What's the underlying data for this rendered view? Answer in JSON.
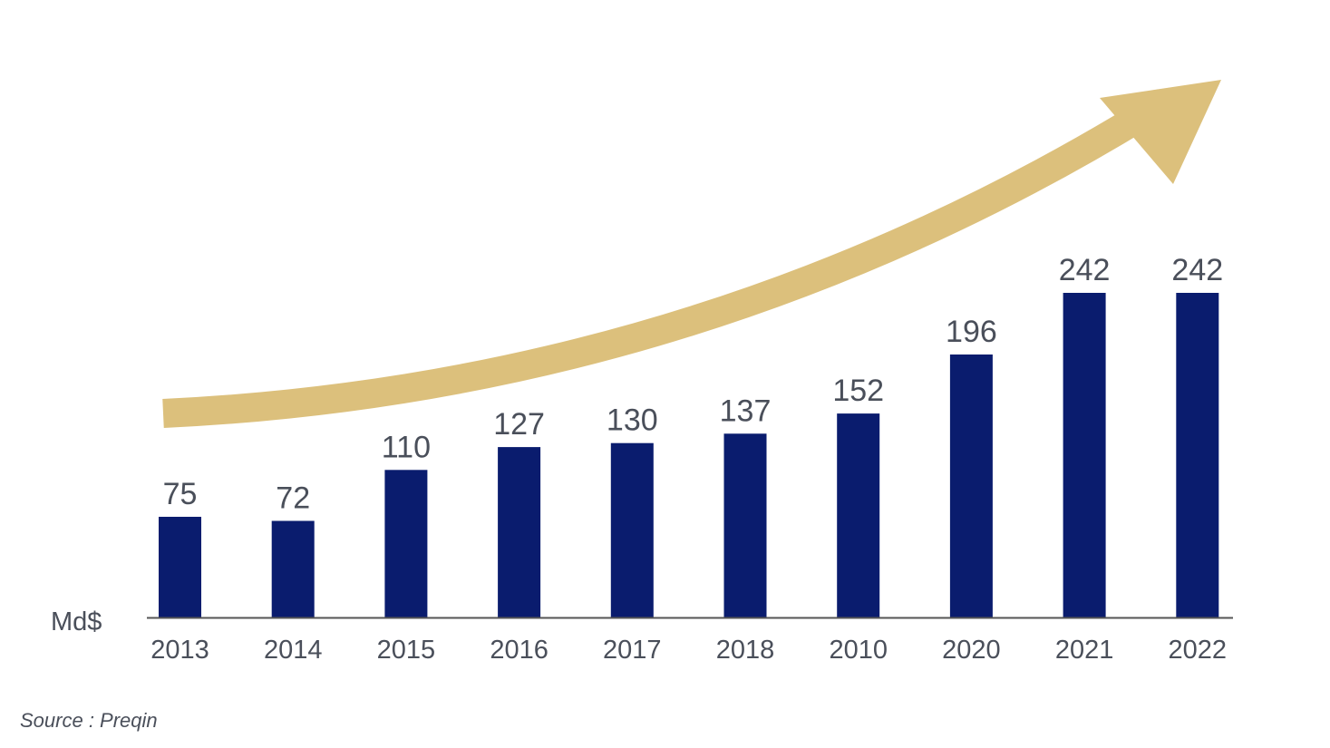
{
  "chart_data": {
    "type": "bar",
    "categories": [
      "2013",
      "2014",
      "2015",
      "2016",
      "2017",
      "2018",
      "2010",
      "2020",
      "2021",
      "2022"
    ],
    "values": [
      75,
      72,
      110,
      127,
      130,
      137,
      152,
      196,
      242,
      242
    ],
    "ylabel": "Md$",
    "ylim": [
      0,
      300
    ],
    "grid": false,
    "legend": "none",
    "data_labels": true,
    "annotations": [
      {
        "type": "trend-arrow",
        "description": "rising curved arrow"
      }
    ],
    "colors": {
      "bar": "#0a1c6e",
      "arrow": "#dcc07c",
      "text": "#4a4f5a",
      "axis": "#555555"
    }
  },
  "source": "Source : Preqin"
}
